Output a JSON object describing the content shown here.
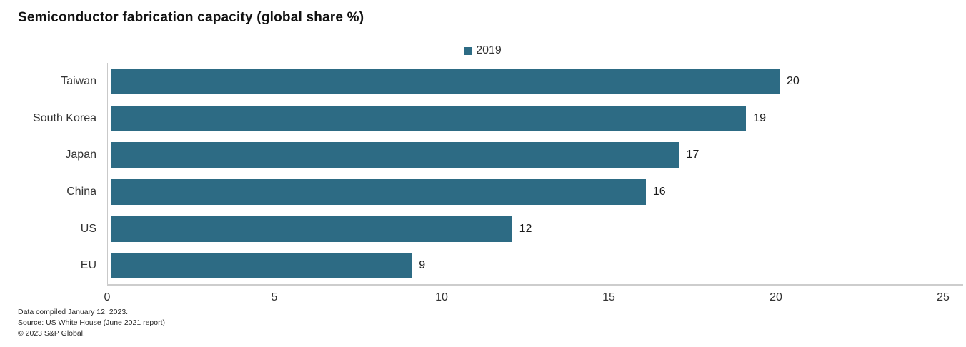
{
  "title": "Semiconductor fabrication capacity (global share %)",
  "legend": {
    "label": "2019"
  },
  "colors": {
    "bar": "#2d6b84",
    "axis_line": "#c9c9c9",
    "title_text": "#111111",
    "label_text": "#333333"
  },
  "chart_data": {
    "type": "bar",
    "orientation": "horizontal",
    "title": "Semiconductor fabrication capacity (global share %)",
    "categories": [
      "Taiwan",
      "South Korea",
      "Japan",
      "China",
      "US",
      "EU"
    ],
    "series": [
      {
        "name": "2019",
        "values": [
          20,
          19,
          17,
          16,
          12,
          9
        ]
      }
    ],
    "xlabel": "",
    "ylabel": "",
    "xlim": [
      0,
      25
    ],
    "xticks": [
      0,
      5,
      10,
      15,
      20,
      25
    ],
    "grid": false,
    "legend_position": "top-center",
    "value_labels": true
  },
  "footer": {
    "line1": "Data compiled January 12, 2023.",
    "line2": "Source: US White House (June 2021 report)",
    "line3": "© 2023 S&P Global."
  }
}
